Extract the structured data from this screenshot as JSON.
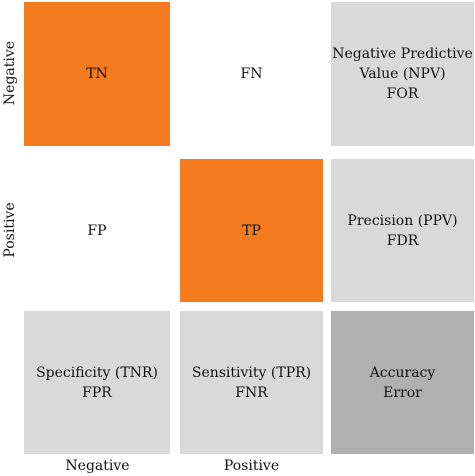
{
  "row_labels": [
    "Negative",
    "Positive"
  ],
  "col_labels": [
    "Negative",
    "Positive"
  ],
  "cells": {
    "tn": [
      "TN"
    ],
    "fn": [
      "FN"
    ],
    "npv": [
      "Negative Predictive",
      "Value (NPV)",
      "FOR"
    ],
    "fp": [
      "FP"
    ],
    "tp": [
      "TP"
    ],
    "ppv": [
      "Precision (PPV)",
      "FDR"
    ],
    "tnr": [
      "Specificity (TNR)",
      "FPR"
    ],
    "tpr": [
      "Sensitivity (TPR)",
      "FNR"
    ],
    "acc": [
      "Accuracy",
      "Error"
    ]
  },
  "colors": {
    "highlight": "#f47b20",
    "metric": "#d9d9d9",
    "overall": "#b0b0b0"
  }
}
